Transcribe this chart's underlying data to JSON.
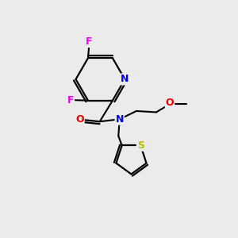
{
  "background_color": "#ebebeb",
  "bond_color": "#000000",
  "atom_colors": {
    "F": "#ee00ee",
    "N": "#0000ee",
    "O": "#ee0000",
    "S": "#bbbb00",
    "C": "#000000"
  },
  "figsize": [
    3.0,
    3.0
  ],
  "dpi": 100
}
